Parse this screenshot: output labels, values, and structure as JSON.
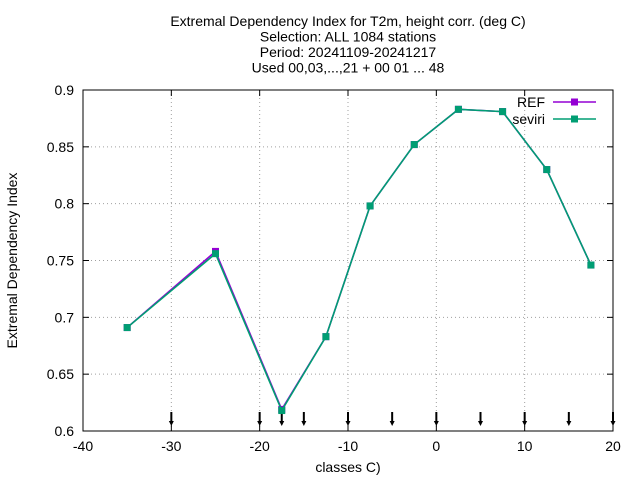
{
  "chart_data": {
    "type": "line",
    "title_lines": [
      "Extremal Dependency Index  for T2m, height corr. (deg C)",
      "Selection: ALL    1084 stations",
      "Period: 20241109-20241217",
      "Used 00,03,...,21 + 00 01 ... 48"
    ],
    "xlabel": "classes C)",
    "ylabel": "Extremal Dependency Index",
    "xlim": [
      -40,
      20
    ],
    "ylim": [
      0.6,
      0.9
    ],
    "xticks": [
      -40,
      -30,
      -20,
      -10,
      0,
      10,
      20
    ],
    "xtick_labels": [
      "-40",
      "-30",
      "-20",
      "-10",
      "0",
      "10",
      "20"
    ],
    "yticks": [
      0.6,
      0.65,
      0.7,
      0.75,
      0.8,
      0.85,
      0.9
    ],
    "ytick_labels": [
      "0.6",
      "0.65",
      "0.7",
      "0.75",
      "0.8",
      "0.85",
      "0.9"
    ],
    "grid": true,
    "legend_position": "top-right",
    "class_markers_x": [
      -30,
      -20,
      -17.5,
      -15,
      -10,
      -5,
      0,
      5,
      10,
      15,
      20
    ],
    "series": [
      {
        "name": "REF",
        "color": "#9400d3",
        "x": [
          -35,
          -25,
          -17.5,
          -12.5,
          -7.5,
          -2.5,
          2.5,
          7.5,
          12.5,
          17.5
        ],
        "values": [
          0.691,
          0.758,
          0.619,
          0.683,
          0.798,
          0.852,
          0.883,
          0.881,
          0.83,
          0.746
        ]
      },
      {
        "name": "seviri",
        "color": "#009e73",
        "x": [
          -35,
          -25,
          -17.5,
          -12.5,
          -7.5,
          -2.5,
          2.5,
          7.5,
          12.5,
          17.5
        ],
        "values": [
          0.691,
          0.756,
          0.618,
          0.683,
          0.798,
          0.852,
          0.883,
          0.881,
          0.83,
          0.746
        ]
      }
    ]
  }
}
